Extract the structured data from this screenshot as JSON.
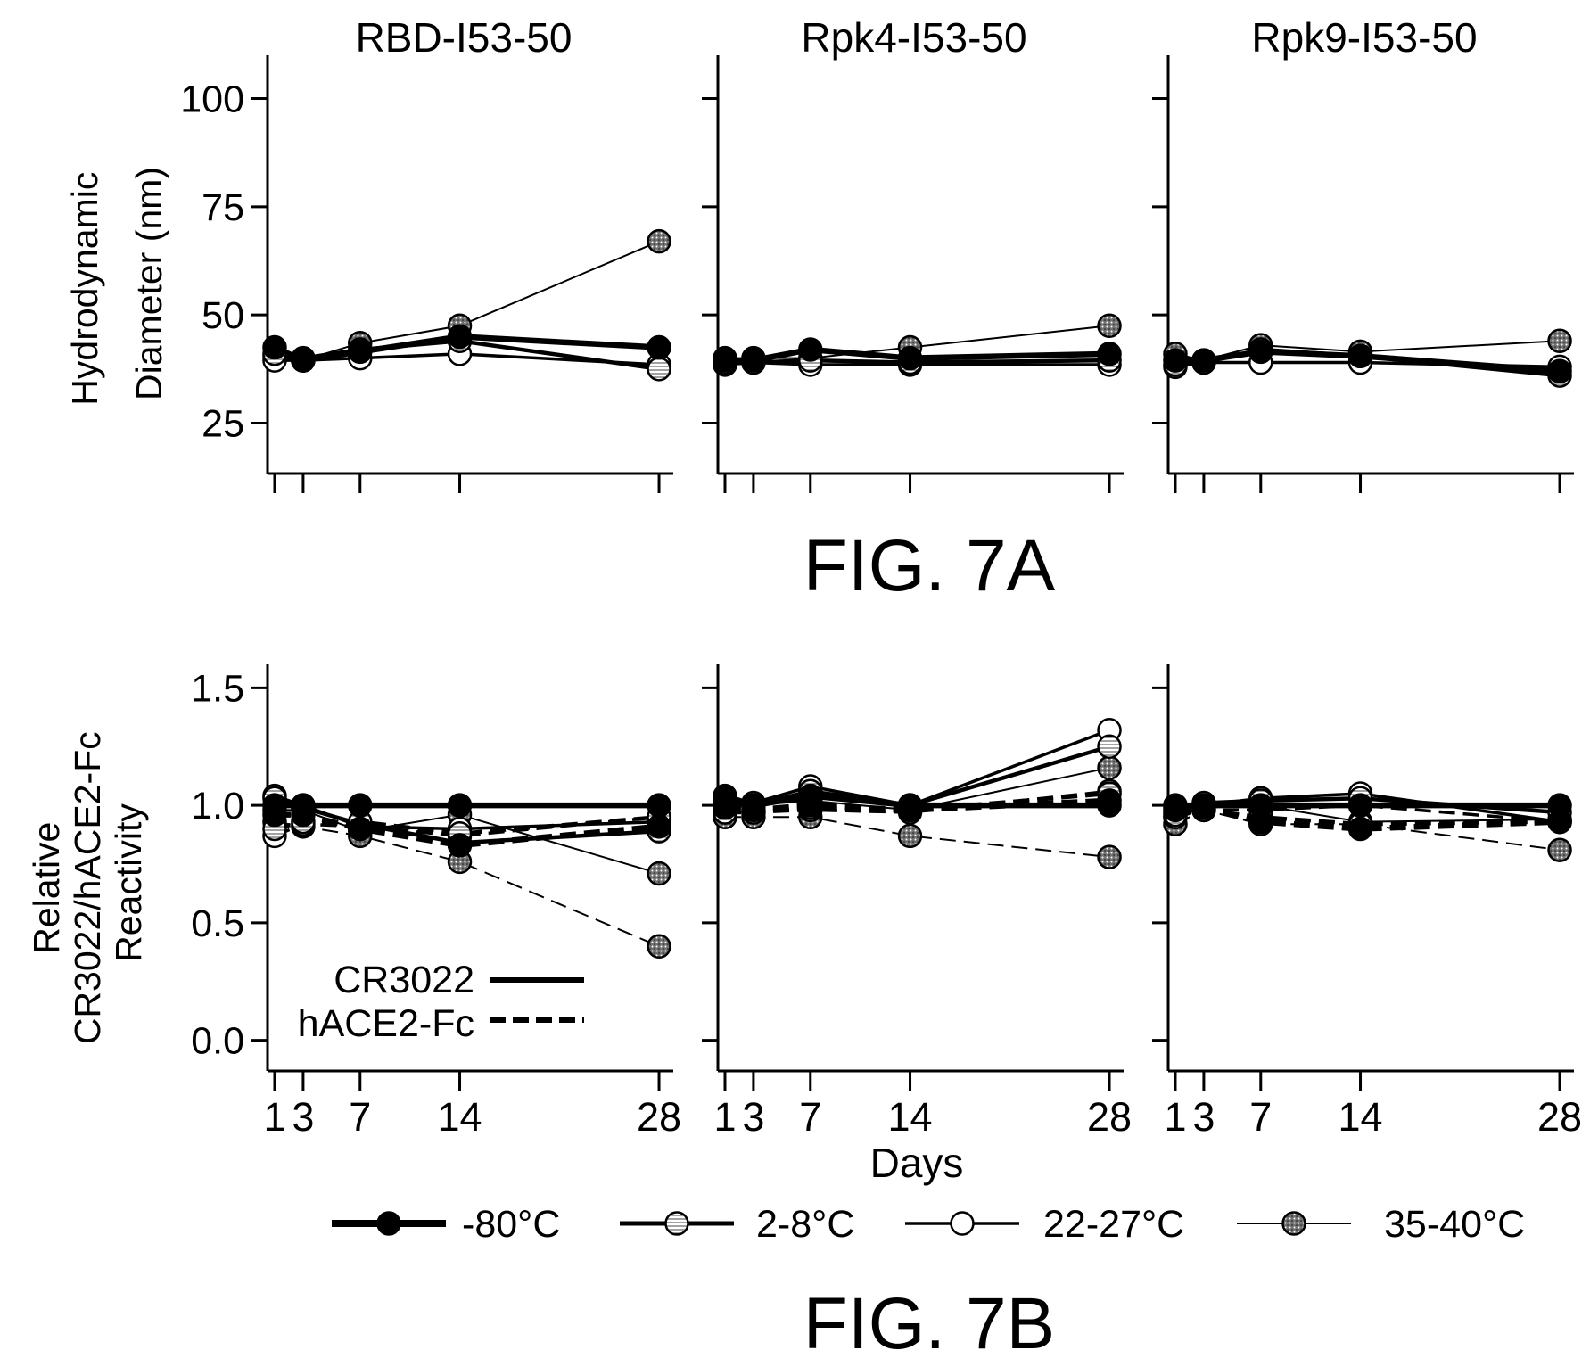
{
  "figure": {
    "fig_a_label": "FIG. 7A",
    "fig_b_label": "FIG. 7B",
    "x_label": "Days",
    "y_label_a": [
      "Hydrodynamic",
      "Diameter (nm)"
    ],
    "y_label_b": [
      "Relative",
      "CR3022/hACE2-Fc",
      "Reactivity"
    ],
    "panel_titles": [
      "RBD-I53-50",
      "Rpk4-I53-50",
      "Rpk9-I53-50"
    ]
  },
  "legend": {
    "assay": [
      {
        "label": "CR3022",
        "style": "solid"
      },
      {
        "label": "hACE2-Fc",
        "style": "dashed"
      }
    ],
    "temperatures": [
      {
        "key": "m80",
        "label": "-80°C",
        "marker": "filled",
        "weight": "heavy"
      },
      {
        "key": "t28",
        "label": "2-8°C",
        "marker": "striped",
        "weight": "medium"
      },
      {
        "key": "t22",
        "label": "22-27°C",
        "marker": "open",
        "weight": "medium"
      },
      {
        "key": "t35",
        "label": "35-40°C",
        "marker": "dotted",
        "weight": "thin"
      }
    ]
  },
  "colors": {
    "ink": "#000000",
    "open_fill": "#ffffff",
    "dotted_fill": "#6e6e6e",
    "striped_fill": "#e6e6e6"
  },
  "chart_data": [
    {
      "type": "line",
      "title": "RBD-I53-50",
      "xlabel": "",
      "ylabel": "Hydrodynamic Diameter (nm)",
      "x": [
        1,
        3,
        7,
        14,
        28
      ],
      "xlim": [
        0.5,
        29
      ],
      "ylim": [
        15,
        110
      ],
      "yticks": [
        25,
        50,
        75,
        100
      ],
      "xticks": [
        1,
        3,
        7,
        14,
        28
      ],
      "grid": false,
      "series": [
        {
          "name": "-80°C",
          "values": [
            42.5,
            39.5,
            41.5,
            45,
            42.5
          ]
        },
        {
          "name": "2-8°C",
          "values": [
            41,
            40,
            42,
            44,
            37.5
          ]
        },
        {
          "name": "22-27°C",
          "values": [
            39.5,
            39.5,
            40,
            41,
            38.5
          ]
        },
        {
          "name": "35-40°C",
          "values": [
            40.5,
            39.5,
            43.5,
            47.5,
            67
          ]
        }
      ]
    },
    {
      "type": "line",
      "title": "Rpk4-I53-50",
      "xlabel": "",
      "ylabel": "",
      "x": [
        1,
        3,
        7,
        14,
        28
      ],
      "xlim": [
        0.5,
        29
      ],
      "ylim": [
        15,
        110
      ],
      "yticks": [
        25,
        50,
        75,
        100
      ],
      "xticks": [
        1,
        3,
        7,
        14,
        28
      ],
      "grid": false,
      "series": [
        {
          "name": "-80°C",
          "values": [
            39.5,
            39.5,
            42,
            40,
            41
          ]
        },
        {
          "name": "2-8°C",
          "values": [
            39,
            39,
            39.5,
            39,
            39.5
          ]
        },
        {
          "name": "22-27°C",
          "values": [
            38.5,
            39,
            38.5,
            38.5,
            38.5
          ]
        },
        {
          "name": "35-40°C",
          "values": [
            40,
            40,
            40,
            42.5,
            47.5
          ]
        }
      ]
    },
    {
      "type": "line",
      "title": "Rpk9-I53-50",
      "xlabel": "",
      "ylabel": "",
      "x": [
        1,
        3,
        7,
        14,
        28
      ],
      "xlim": [
        0.5,
        29
      ],
      "ylim": [
        15,
        110
      ],
      "yticks": [
        25,
        50,
        75,
        100
      ],
      "xticks": [
        1,
        3,
        7,
        14,
        28
      ],
      "grid": false,
      "series": [
        {
          "name": "-80°C",
          "values": [
            39.5,
            39.5,
            41.5,
            40.5,
            37
          ]
        },
        {
          "name": "2-8°C",
          "values": [
            38.5,
            39,
            42,
            40.5,
            36
          ]
        },
        {
          "name": "22-27°C",
          "values": [
            38,
            39,
            39,
            39,
            38
          ]
        },
        {
          "name": "35-40°C",
          "values": [
            41,
            39.5,
            43,
            41.5,
            44
          ]
        }
      ]
    },
    {
      "type": "line",
      "title": "",
      "xlabel": "Days",
      "ylabel": "Relative CR3022/hACE2-Fc Reactivity",
      "x": [
        1,
        3,
        7,
        14,
        28
      ],
      "xlim": [
        0.5,
        29
      ],
      "ylim": [
        -0.1,
        1.6
      ],
      "yticks": [
        0.0,
        0.5,
        1.0,
        1.5
      ],
      "xticks": [
        1,
        3,
        7,
        14,
        28
      ],
      "grid": false,
      "legend_position": "bottom-left",
      "series": [
        {
          "name": "-80°C",
          "assay": "CR3022",
          "values": [
            1.0,
            1.0,
            1.0,
            1.0,
            1.0
          ]
        },
        {
          "name": "2-8°C",
          "assay": "CR3022",
          "values": [
            1.03,
            0.99,
            0.92,
            0.84,
            0.89
          ]
        },
        {
          "name": "22-27°C",
          "assay": "CR3022",
          "values": [
            1.04,
            1.0,
            0.91,
            0.9,
            0.93
          ]
        },
        {
          "name": "35-40°C",
          "assay": "CR3022",
          "values": [
            0.98,
            0.98,
            0.89,
            0.96,
            0.71
          ]
        },
        {
          "name": "-80°C",
          "assay": "hACE2-Fc",
          "values": [
            0.96,
            0.96,
            0.9,
            0.83,
            0.91
          ]
        },
        {
          "name": "2-8°C",
          "assay": "hACE2-Fc",
          "values": [
            0.9,
            0.93,
            0.93,
            0.88,
            0.95
          ]
        },
        {
          "name": "22-27°C",
          "assay": "hACE2-Fc",
          "values": [
            0.87,
            0.92,
            0.91,
            0.87,
            0.95
          ]
        },
        {
          "name": "35-40°C",
          "assay": "hACE2-Fc",
          "values": [
            0.93,
            0.91,
            0.87,
            0.76,
            0.4
          ]
        }
      ]
    },
    {
      "type": "line",
      "title": "",
      "xlabel": "Days",
      "ylabel": "",
      "x": [
        1,
        3,
        7,
        14,
        28
      ],
      "xlim": [
        0.5,
        29
      ],
      "ylim": [
        -0.1,
        1.6
      ],
      "yticks": [
        0.0,
        0.5,
        1.0,
        1.5
      ],
      "xticks": [
        1,
        3,
        7,
        14,
        28
      ],
      "grid": false,
      "series": [
        {
          "name": "-80°C",
          "assay": "CR3022",
          "values": [
            1.04,
            1.0,
            1.04,
            1.0,
            1.0
          ]
        },
        {
          "name": "2-8°C",
          "assay": "CR3022",
          "values": [
            1.02,
            1.0,
            1.06,
            1.0,
            1.25
          ]
        },
        {
          "name": "22-27°C",
          "assay": "CR3022",
          "values": [
            1.01,
            1.01,
            1.08,
            1.0,
            1.32
          ]
        },
        {
          "name": "35-40°C",
          "assay": "CR3022",
          "values": [
            1.0,
            1.0,
            1.02,
            0.98,
            1.16
          ]
        },
        {
          "name": "-80°C",
          "assay": "hACE2-Fc",
          "values": [
            0.99,
            0.98,
            1.0,
            0.98,
            1.02
          ]
        },
        {
          "name": "2-8°C",
          "assay": "hACE2-Fc",
          "values": [
            0.97,
            0.97,
            0.99,
            0.98,
            1.05
          ]
        },
        {
          "name": "22-27°C",
          "assay": "hACE2-Fc",
          "values": [
            0.97,
            0.97,
            0.98,
            0.97,
            1.06
          ]
        },
        {
          "name": "35-40°C",
          "assay": "hACE2-Fc",
          "values": [
            0.95,
            0.95,
            0.95,
            0.87,
            0.78
          ]
        }
      ]
    },
    {
      "type": "line",
      "title": "",
      "xlabel": "Days",
      "ylabel": "",
      "x": [
        1,
        3,
        7,
        14,
        28
      ],
      "xlim": [
        0.5,
        29
      ],
      "ylim": [
        -0.1,
        1.6
      ],
      "yticks": [
        0.0,
        0.5,
        1.0,
        1.5
      ],
      "xticks": [
        1,
        3,
        7,
        14,
        28
      ],
      "grid": false,
      "series": [
        {
          "name": "-80°C",
          "assay": "CR3022",
          "values": [
            1.0,
            1.0,
            1.0,
            1.0,
            1.0
          ]
        },
        {
          "name": "2-8°C",
          "assay": "CR3022",
          "values": [
            0.99,
            1.01,
            1.02,
            1.03,
            0.97
          ]
        },
        {
          "name": "22-27°C",
          "assay": "CR3022",
          "values": [
            0.97,
            1.0,
            1.03,
            1.05,
            0.93
          ]
        },
        {
          "name": "35-40°C",
          "assay": "CR3022",
          "values": [
            0.95,
            0.99,
            1.0,
            0.93,
            0.94
          ]
        },
        {
          "name": "-80°C",
          "assay": "hACE2-Fc",
          "values": [
            0.98,
            0.99,
            0.93,
            0.9,
            0.93
          ]
        },
        {
          "name": "2-8°C",
          "assay": "hACE2-Fc",
          "values": [
            0.96,
            0.98,
            0.95,
            0.92,
            0.93
          ]
        },
        {
          "name": "22-27°C",
          "assay": "hACE2-Fc",
          "values": [
            0.95,
            0.98,
            0.98,
            1.0,
            0.93
          ]
        },
        {
          "name": "35-40°C",
          "assay": "hACE2-Fc",
          "values": [
            0.92,
            0.98,
            0.92,
            0.92,
            0.81
          ]
        }
      ]
    }
  ]
}
